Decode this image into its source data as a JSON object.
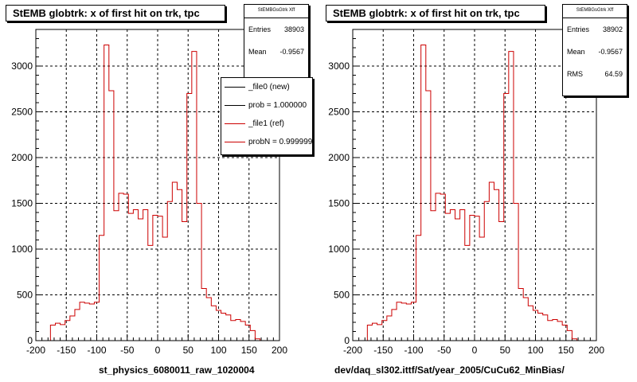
{
  "charts": [
    {
      "title": "StEMB globtrk: x of first hit on trk, tpc",
      "xlabel": "st_physics_6080011_raw_1020004",
      "stats": {
        "name": "StEMBGsGtrk Xff",
        "rows": [
          {
            "label": "Entries",
            "value": "38903"
          },
          {
            "label": "Mean",
            "value": "-0.9567"
          }
        ]
      },
      "legend": [
        {
          "label": "_file0 (new)",
          "color": "#000000"
        },
        {
          "label": "prob = 1.000000",
          "color": "#000000"
        },
        {
          "label": "_file1 (ref)",
          "color": "#cc0000"
        },
        {
          "label": "probN = 0.999999",
          "color": "#cc0000"
        }
      ]
    },
    {
      "title": "StEMB globtrk: x of first hit on trk, tpc",
      "xlabel": "dev/daq_sl302.ittf/Sat/year_2005/CuCu62_MinBias/",
      "stats": {
        "name": "StEMBGsGtrk Xff",
        "rows": [
          {
            "label": "Entries",
            "value": "38902"
          },
          {
            "label": "Mean",
            "value": "-0.9567"
          },
          {
            "label": "RMS",
            "value": "64.59"
          }
        ]
      }
    }
  ],
  "chart_data": [
    {
      "type": "histogram",
      "title": "StEMB globtrk: x of first hit on trk, tpc",
      "xlabel": "st_physics_6080011_raw_1020004",
      "ylabel": "",
      "xlim": [
        -200,
        200
      ],
      "ylim": [
        0,
        3400
      ],
      "xticks": [
        -200,
        -150,
        -100,
        -50,
        0,
        50,
        100,
        150,
        200
      ],
      "yticks": [
        0,
        500,
        1000,
        1500,
        2000,
        2500,
        3000
      ],
      "grid": true,
      "bin_edges_start": -200,
      "bin_width": 8,
      "series": [
        {
          "name": "_file1 (ref)",
          "color": "#cc0000",
          "values": [
            0,
            0,
            0,
            170,
            190,
            175,
            220,
            270,
            340,
            420,
            410,
            400,
            420,
            1150,
            3230,
            2730,
            1420,
            1610,
            1600,
            1390,
            1430,
            1330,
            1430,
            1040,
            1370,
            1360,
            1130,
            1520,
            1730,
            1650,
            1300,
            2700,
            3160,
            1500,
            570,
            470,
            380,
            330,
            300,
            280,
            220,
            230,
            210,
            170,
            110,
            20,
            0,
            0,
            0,
            0
          ]
        }
      ]
    },
    {
      "type": "histogram",
      "title": "StEMB globtrk: x of first hit on trk, tpc",
      "xlabel": "dev/daq_sl302.ittf/Sat/year_2005/CuCu62_MinBias/",
      "ylabel": "",
      "xlim": [
        -200,
        200
      ],
      "ylim": [
        0,
        3400
      ],
      "xticks": [
        -200,
        -150,
        -100,
        -50,
        0,
        50,
        100,
        150,
        200
      ],
      "yticks": [
        0,
        500,
        1000,
        1500,
        2000,
        2500,
        3000
      ],
      "grid": true,
      "bin_edges_start": -200,
      "bin_width": 8,
      "series": [
        {
          "name": "",
          "color": "#cc0000",
          "values": [
            0,
            0,
            0,
            170,
            190,
            175,
            220,
            270,
            340,
            420,
            410,
            400,
            420,
            1150,
            3230,
            2730,
            1420,
            1610,
            1600,
            1390,
            1430,
            1330,
            1430,
            1040,
            1370,
            1360,
            1130,
            1520,
            1730,
            1650,
            1300,
            2700,
            3160,
            1500,
            570,
            470,
            380,
            330,
            300,
            280,
            220,
            230,
            210,
            170,
            110,
            20,
            0,
            0,
            0,
            0
          ]
        }
      ]
    }
  ]
}
